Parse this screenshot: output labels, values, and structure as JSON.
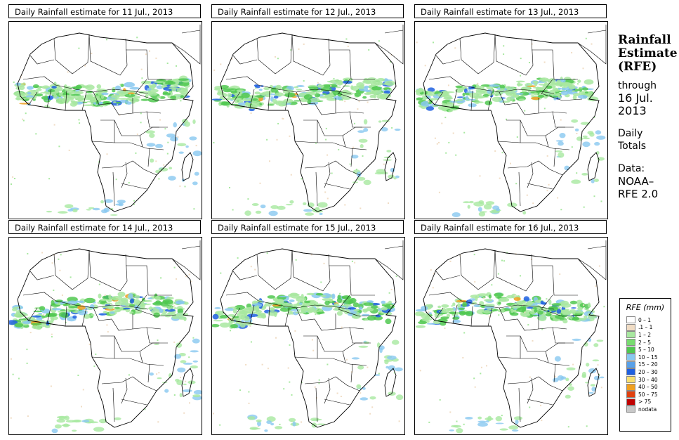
{
  "panels": [
    {
      "title": "Daily Rainfall estimate for  11 Jul., 2013"
    },
    {
      "title": "Daily Rainfall estimate for  12 Jul., 2013"
    },
    {
      "title": "Daily Rainfall estimate for  13 Jul., 2013"
    },
    {
      "title": "Daily Rainfall estimate for  14 Jul., 2013"
    },
    {
      "title": "Daily Rainfall estimate for  15 Jul., 2013"
    },
    {
      "title": "Daily Rainfall estimate for  16 Jul., 2013"
    }
  ],
  "side": {
    "heading1": "Rainfall",
    "heading2": "Estimate",
    "heading3": "(RFE)",
    "through": "through",
    "date1": "16 Jul.",
    "date2": "2013",
    "totals1": "Daily",
    "totals2": "Totals",
    "data1": "Data:",
    "data2": "NOAA–",
    "data3": "RFE 2.0"
  },
  "legend": {
    "title": "RFE (mm)",
    "items": [
      {
        "label": "0 – 1",
        "color": "#ffffff"
      },
      {
        "label": ".1 – 1",
        "color": "#f0dcc4"
      },
      {
        "label": "1 – 2",
        "color": "#a8e8a0"
      },
      {
        "label": "2 – 5",
        "color": "#78dc70"
      },
      {
        "label": "5 – 10",
        "color": "#50c850"
      },
      {
        "label": "10 – 15",
        "color": "#88c8f0"
      },
      {
        "label": "15 – 20",
        "color": "#58a0e8"
      },
      {
        "label": "20 – 30",
        "color": "#2060e0"
      },
      {
        "label": "30 – 40",
        "color": "#f8e070"
      },
      {
        "label": "40 – 50",
        "color": "#f0a020"
      },
      {
        "label": "50 – 75",
        "color": "#e04010"
      },
      {
        "label": "> 75",
        "color": "#c00000"
      },
      {
        "label": "nodata",
        "color": "#c8c8c8"
      }
    ]
  }
}
